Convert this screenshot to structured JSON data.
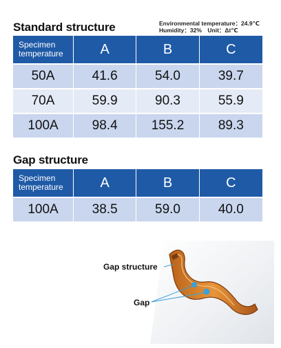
{
  "standard": {
    "title": "Standard structure",
    "conditions_line1": "Environmental temperature：24.9℃",
    "conditions_line2": "Humidity：32%　Unit：Δt℃",
    "header": {
      "specimen_line1": "Specimen",
      "specimen_line2": "temperature",
      "cols": [
        "A",
        "B",
        "C"
      ]
    },
    "rows": [
      {
        "label": "50A",
        "values": [
          "41.6",
          "54.0",
          "39.7"
        ]
      },
      {
        "label": "70A",
        "values": [
          "59.9",
          "90.3",
          "55.9"
        ]
      },
      {
        "label": "100A",
        "values": [
          "98.4",
          "155.2",
          "89.3"
        ]
      }
    ]
  },
  "gap": {
    "title": "Gap structure",
    "header": {
      "specimen_line1": "Specimen",
      "specimen_line2": "temperature",
      "cols": [
        "A",
        "B",
        "C"
      ]
    },
    "rows": [
      {
        "label": "100A",
        "values": [
          "38.5",
          "59.0",
          "40.0"
        ]
      }
    ]
  },
  "figure": {
    "label_structure": "Gap structure",
    "label_gap": "Gap",
    "colors": {
      "copper": "#d9822b",
      "accent": "#3aa0d8",
      "header_blue": "#1f5aa6"
    }
  }
}
